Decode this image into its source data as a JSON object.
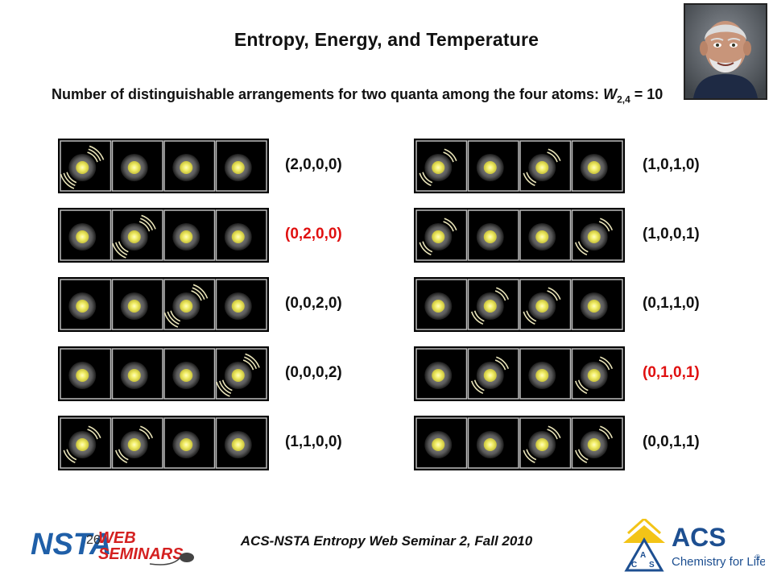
{
  "slide": {
    "title": "Entropy, Energy, and Temperature",
    "subtitle_text": "Number of  distinguishable arrangements for two quanta among the four atoms: ",
    "subtitle_w": "W",
    "subtitle_sub": "2,4",
    "subtitle_value": " = 10",
    "footer": "ACS-NSTA Entropy Web Seminar 2, Fall 2010",
    "page_number": "26"
  },
  "arrangements": [
    {
      "label": "(2,0,0,0)",
      "quanta": [
        2,
        0,
        0,
        0
      ],
      "highlight": false
    },
    {
      "label": "(0,2,0,0)",
      "quanta": [
        0,
        2,
        0,
        0
      ],
      "highlight": true
    },
    {
      "label": "(0,0,2,0)",
      "quanta": [
        0,
        0,
        2,
        0
      ],
      "highlight": false
    },
    {
      "label": "(0,0,0,2)",
      "quanta": [
        0,
        0,
        0,
        2
      ],
      "highlight": false
    },
    {
      "label": "(1,1,0,0)",
      "quanta": [
        1,
        1,
        0,
        0
      ],
      "highlight": false
    },
    {
      "label": "(1,0,1,0)",
      "quanta": [
        1,
        0,
        1,
        0
      ],
      "highlight": false
    },
    {
      "label": "(1,0,0,1)",
      "quanta": [
        1,
        0,
        0,
        1
      ],
      "highlight": false
    },
    {
      "label": "(0,1,1,0)",
      "quanta": [
        0,
        1,
        1,
        0
      ],
      "highlight": false
    },
    {
      "label": "(0,1,0,1)",
      "quanta": [
        0,
        1,
        0,
        1
      ],
      "highlight": true
    },
    {
      "label": "(0,0,1,1)",
      "quanta": [
        0,
        0,
        1,
        1
      ],
      "highlight": false
    }
  ],
  "logos": {
    "nsta_main": "NSTA",
    "nsta_web": "WEB",
    "nsta_seminars": "SEMINARS",
    "acs_main": "ACS",
    "acs_tagline": "Chemistry for Life",
    "acs_tm": "®"
  },
  "colors": {
    "highlight": "#e01010",
    "nsta_blue": "#1f5fa8",
    "nsta_red": "#d42020",
    "acs_blue": "#1d4f91",
    "acs_gold": "#f3c417"
  }
}
